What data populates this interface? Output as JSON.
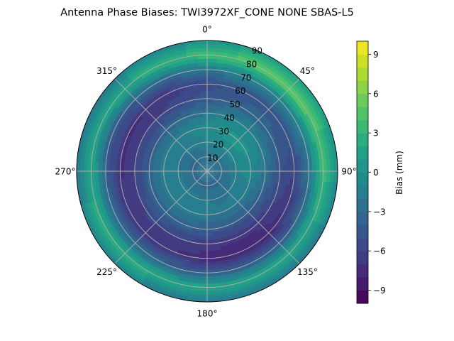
{
  "chart_data": {
    "type": "heatmap",
    "title": "Antenna Phase Biases: TWI3972XF_CONE  NONE SBAS-L5",
    "projection": "polar",
    "azimuth_ticks": [
      {
        "deg": 0,
        "label": "0°"
      },
      {
        "deg": 45,
        "label": "45°"
      },
      {
        "deg": 90,
        "label": "90°"
      },
      {
        "deg": 135,
        "label": "135°"
      },
      {
        "deg": 180,
        "label": "180°"
      },
      {
        "deg": 225,
        "label": "225°"
      },
      {
        "deg": 270,
        "label": "270°"
      },
      {
        "deg": 315,
        "label": "315°"
      }
    ],
    "radial_ticks": [
      "10",
      "20",
      "30",
      "40",
      "50",
      "60",
      "70",
      "80",
      "90"
    ],
    "radial_range": [
      0,
      90
    ],
    "colorbar": {
      "label": "Bias (mm)",
      "range": [
        -10,
        10
      ],
      "ticks": [
        "−9",
        "−6",
        "−3",
        "0",
        "3",
        "6",
        "9"
      ],
      "tick_values": [
        -9,
        -6,
        -3,
        0,
        3,
        6,
        9
      ],
      "levels": 20,
      "colormap": "viridis"
    },
    "bias_profile_by_zenith": [
      {
        "zenith": 0,
        "bias": -2.5
      },
      {
        "zenith": 10,
        "bias": -3
      },
      {
        "zenith": 20,
        "bias": -1.5
      },
      {
        "zenith": 30,
        "bias": -1
      },
      {
        "zenith": 40,
        "bias": -3
      },
      {
        "zenith": 50,
        "bias": -5.5
      },
      {
        "zenith": 60,
        "bias": -6.5
      },
      {
        "zenith": 70,
        "bias": -3
      },
      {
        "zenith": 80,
        "bias": 3
      },
      {
        "zenith": 90,
        "bias": -1
      }
    ],
    "grid": true
  }
}
